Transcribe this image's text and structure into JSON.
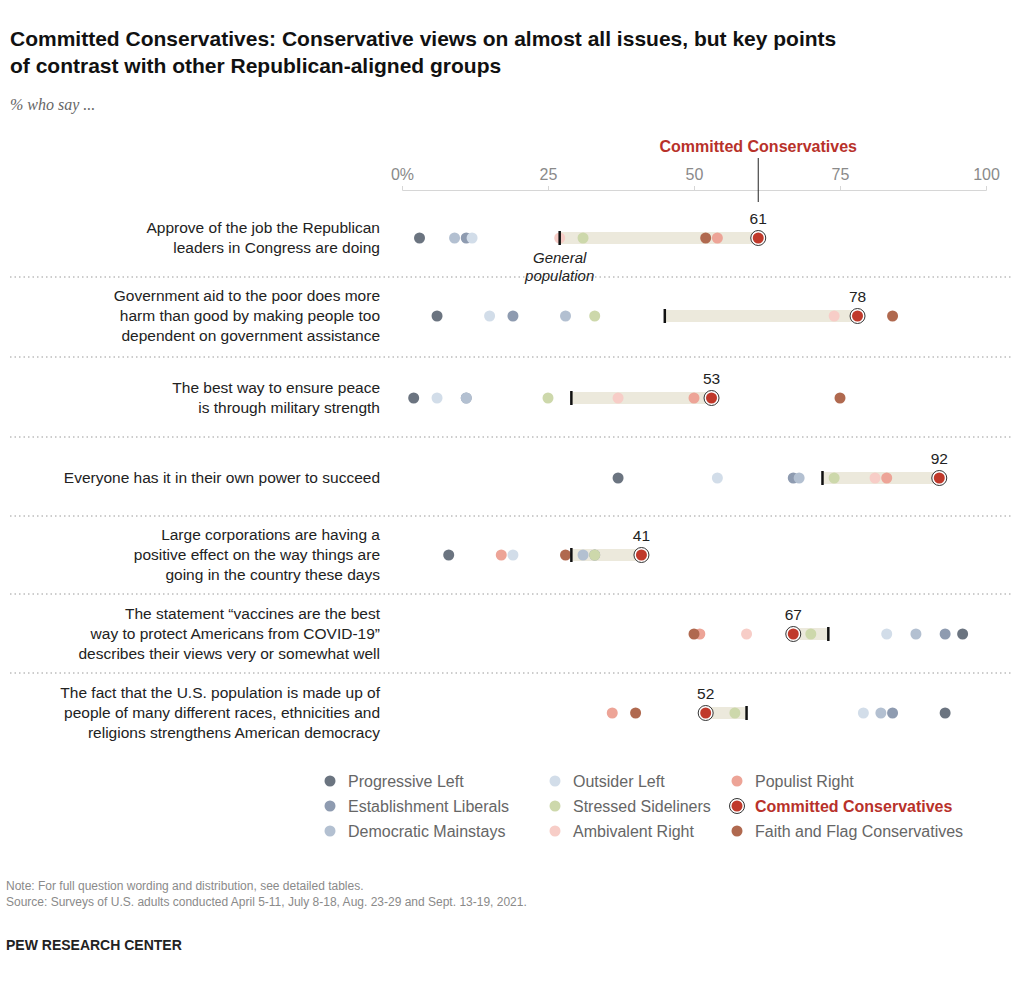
{
  "chart_data": {
    "type": "dot",
    "title": "Committed Conservatives: Conservative views on almost all issues, but key points\nof contrast with other Republican-aligned groups",
    "subtitle": "% who say ...",
    "categories": [
      "Approve of the job the Republican\nleaders in Congress are doing",
      "Government aid to the poor does more\nharm than good by making people too\ndependent on government assistance",
      "The best way to ensure peace\nis through military strength",
      "Everyone has it in their own power to succeed",
      "Large corporations are having a\npositive effect on the way things are\ngoing in the country these days",
      "The statement “vaccines are the best\nway to protect Americans from COVID-19”\ndescribes their views very or somewhat well",
      "The fact that the U.S. population is made up of\npeople of many different races, ethnicities and\nreligions strengthens American democracy"
    ],
    "series": [
      {
        "name": "Progressive Left",
        "color": "#6b7480",
        "values": [
          3,
          6,
          2,
          37,
          8,
          96,
          93
        ]
      },
      {
        "name": "Establishment Liberals",
        "color": "#8e9bb0",
        "values": [
          11,
          19,
          11,
          67,
          33,
          93,
          84
        ]
      },
      {
        "name": "Democratic Mainstays",
        "color": "#b3c0d1",
        "values": [
          9,
          28,
          11,
          68,
          31,
          88,
          82
        ]
      },
      {
        "name": "Outsider Left",
        "color": "#d2dde9",
        "values": [
          12,
          15,
          6,
          54,
          19,
          83,
          79
        ]
      },
      {
        "name": "Stressed Sideliners",
        "color": "#cdd8ab",
        "values": [
          31,
          33,
          25,
          74,
          33,
          70,
          57
        ]
      },
      {
        "name": "Ambivalent Right",
        "color": "#f7cdc7",
        "values": [
          27,
          74,
          37,
          81,
          41,
          59,
          52
        ]
      },
      {
        "name": "Populist Right",
        "color": "#eda497",
        "values": [
          54,
          78,
          50,
          83,
          17,
          51,
          36
        ]
      },
      {
        "name": "Committed Conservatives",
        "color": "#c0392b",
        "values": [
          61,
          78,
          53,
          92,
          41,
          67,
          52
        ],
        "data_labels": true
      },
      {
        "name": "Faith and Flag Conservatives",
        "color": "#b0694f",
        "values": [
          52,
          84,
          75,
          92,
          28,
          50,
          40
        ]
      },
      {
        "name": "General population",
        "color": "#111111",
        "marker": "tick",
        "values": [
          27,
          45,
          29,
          72,
          29,
          73,
          59
        ]
      }
    ],
    "xlim": [
      0,
      100
    ],
    "xticks": [
      {
        "value": 0,
        "label": "0%"
      },
      25,
      50,
      75,
      100
    ],
    "note": "Note: For full question wording and distribution, see detailed tables.",
    "source": "Source: Surveys of U.S. adults conducted April 5-11, July 8-18, Aug. 23-29 and Sept. 13-19, 2021.",
    "credit": "PEW RESEARCH CENTER"
  }
}
